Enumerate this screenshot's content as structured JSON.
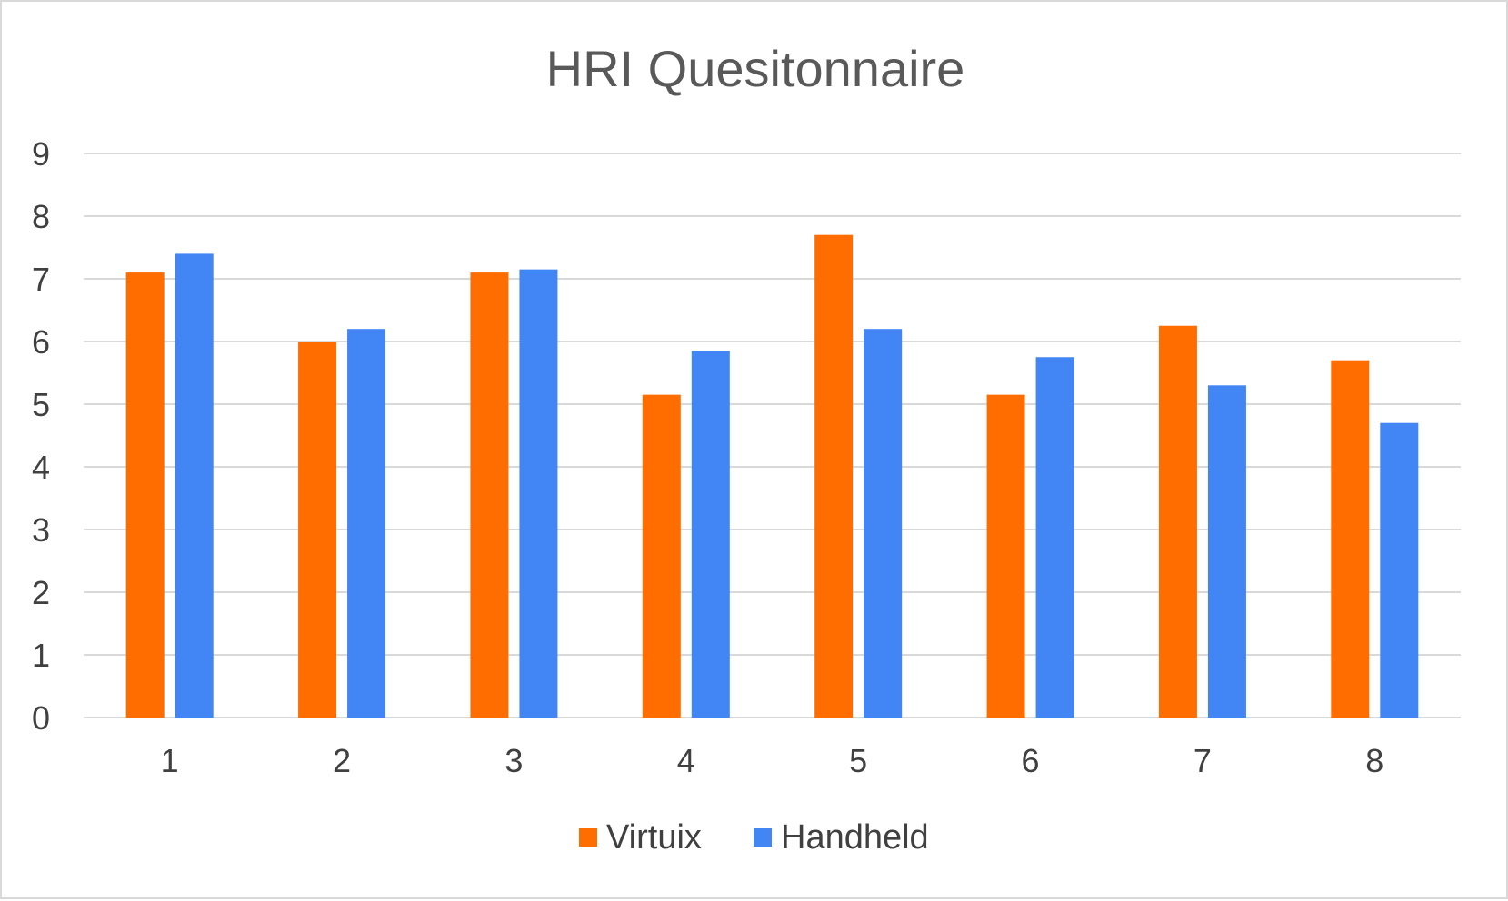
{
  "chart_data": {
    "type": "bar",
    "title": "HRI Quesitonnaire",
    "xlabel": "",
    "ylabel": "",
    "categories": [
      "1",
      "2",
      "3",
      "4",
      "5",
      "6",
      "7",
      "8"
    ],
    "series": [
      {
        "name": "Virtuix",
        "color": "#FF6D00",
        "values": [
          7.1,
          6.0,
          7.1,
          5.15,
          7.7,
          5.15,
          6.25,
          5.7
        ]
      },
      {
        "name": "Handheld",
        "color": "#4285F4",
        "values": [
          7.4,
          6.2,
          7.15,
          5.85,
          6.2,
          5.75,
          5.3,
          4.7
        ]
      }
    ],
    "ylim": [
      0,
      9
    ],
    "yticks": [
      "0",
      "1",
      "2",
      "3",
      "4",
      "5",
      "6",
      "7",
      "8",
      "9"
    ],
    "grid": true,
    "legend_position": "bottom"
  }
}
